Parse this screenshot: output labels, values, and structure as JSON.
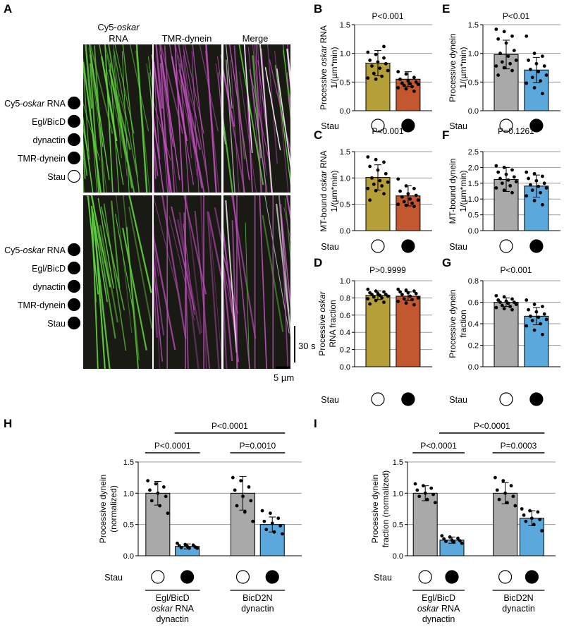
{
  "figure": {
    "panel_letters": [
      "A",
      "B",
      "C",
      "D",
      "E",
      "F",
      "G",
      "H",
      "I"
    ],
    "kymo": {
      "col1_line1": "Cy5-",
      "col1_line1_it": "oskar",
      "col1_line2": "RNA",
      "col2": "TMR-dynein",
      "col3": "Merge",
      "cond_rows": [
        {
          "label_pre": "Cy5-",
          "label_it": "oskar",
          "label_post": " RNA"
        },
        {
          "label_pre": "Egl/BicD",
          "label_it": "",
          "label_post": ""
        },
        {
          "label_pre": "dynactin",
          "label_it": "",
          "label_post": ""
        },
        {
          "label_pre": "TMR-dynein",
          "label_it": "",
          "label_post": ""
        },
        {
          "label_pre": "Stau",
          "label_it": "",
          "label_post": ""
        }
      ],
      "top_stau_filled": false,
      "bottom_stau_filled": true,
      "scale_time": "30 s",
      "scale_dist": "5 µm"
    },
    "stau_label": "Stau",
    "h_group1": [
      "Egl/BicD",
      "oskar RNA",
      "dynactin"
    ],
    "h_group2": [
      "BicD2N",
      "dynactin"
    ],
    "colors": {
      "olive": "#b59f38",
      "rust": "#c3572f",
      "grey": "#a9a9a9",
      "blue": "#5ba8dd",
      "green": "#5fd23c",
      "magenta": "#c24fc0"
    }
  },
  "chart_data": [
    {
      "panel": "B",
      "type": "bar",
      "title": "P<0.001",
      "ylabel": [
        "Processive oskar RNA",
        "1/(µm*min)"
      ],
      "ylim": [
        0,
        1.5
      ],
      "yticks": [
        0.0,
        0.5,
        1.0,
        1.5
      ],
      "categories": [
        "Stau -",
        "Stau +"
      ],
      "values": [
        0.83,
        0.55
      ],
      "errors": [
        0.22,
        0.13
      ],
      "points": [
        [
          1.02,
          0.98,
          0.92,
          0.88,
          0.85,
          0.82,
          0.78,
          0.74,
          0.7,
          0.65,
          0.6,
          0.57,
          0.55,
          1.12
        ],
        [
          0.68,
          0.64,
          0.58,
          0.55,
          0.52,
          0.5,
          0.48,
          0.47,
          0.46,
          0.44,
          0.42,
          0.4,
          0.38,
          0.34
        ]
      ]
    },
    {
      "panel": "C",
      "type": "bar",
      "title": "P<0.001",
      "ylabel": [
        "MT-bound oskar RNA",
        "1/(µm*min)"
      ],
      "ylim": [
        0,
        1.5
      ],
      "yticks": [
        0.0,
        0.5,
        1.0,
        1.5
      ],
      "categories": [
        "Stau -",
        "Stau +"
      ],
      "values": [
        1.01,
        0.66
      ],
      "errors": [
        0.24,
        0.19
      ],
      "points": [
        [
          1.4,
          1.35,
          1.3,
          1.22,
          1.15,
          1.08,
          1.0,
          0.95,
          0.92,
          0.88,
          0.85,
          0.8,
          0.76,
          0.7,
          0.58
        ],
        [
          0.98,
          0.85,
          0.8,
          0.75,
          0.7,
          0.67,
          0.64,
          0.6,
          0.58,
          0.55,
          0.52,
          0.5,
          0.48,
          0.46
        ]
      ]
    },
    {
      "panel": "D",
      "type": "bar",
      "title": "P>0.9999",
      "ylabel": [
        "Processive oskar",
        "RNA fraction"
      ],
      "ylim": [
        0,
        1.0
      ],
      "yticks": [
        0.0,
        0.2,
        0.4,
        0.6,
        0.8,
        1.0
      ],
      "categories": [
        "Stau -",
        "Stau +"
      ],
      "values": [
        0.83,
        0.82
      ],
      "errors": [
        0.05,
        0.05
      ],
      "points": [
        [
          0.9,
          0.88,
          0.87,
          0.86,
          0.85,
          0.84,
          0.84,
          0.83,
          0.82,
          0.81,
          0.8,
          0.79,
          0.77,
          0.75,
          0.73
        ],
        [
          0.9,
          0.89,
          0.88,
          0.87,
          0.86,
          0.85,
          0.84,
          0.82,
          0.8,
          0.79,
          0.78,
          0.76,
          0.74,
          0.72
        ]
      ]
    },
    {
      "panel": "E",
      "type": "bar",
      "title": "P<0.01",
      "ylabel": [
        "Processive dynein",
        "1/(µm*min)"
      ],
      "ylim": [
        0,
        1.5
      ],
      "yticks": [
        0.0,
        0.5,
        1.0,
        1.5
      ],
      "categories": [
        "Stau -",
        "Stau +"
      ],
      "values": [
        0.98,
        0.71
      ],
      "errors": [
        0.25,
        0.22
      ],
      "points": [
        [
          1.42,
          1.38,
          1.3,
          1.25,
          1.18,
          1.05,
          1.0,
          0.95,
          0.88,
          0.85,
          0.82,
          0.78,
          0.75,
          0.7,
          0.62
        ],
        [
          1.3,
          1.0,
          0.95,
          0.88,
          0.82,
          0.78,
          0.72,
          0.68,
          0.62,
          0.58,
          0.52,
          0.48,
          0.4,
          0.3
        ]
      ]
    },
    {
      "panel": "F",
      "type": "bar",
      "title": "P=0.1261",
      "ylabel": [
        "MT-bound dynein",
        "1/(µm*min)"
      ],
      "ylim": [
        0,
        2.5
      ],
      "yticks": [
        0.0,
        0.5,
        1.0,
        1.5,
        2.0,
        2.5
      ],
      "categories": [
        "Stau -",
        "Stau +"
      ],
      "values": [
        1.62,
        1.41
      ],
      "errors": [
        0.38,
        0.35
      ],
      "points": [
        [
          2.05,
          2.0,
          1.92,
          1.85,
          1.78,
          1.7,
          1.65,
          1.6,
          1.55,
          1.5,
          1.42,
          1.35,
          1.28,
          1.2
        ],
        [
          1.85,
          1.8,
          1.72,
          1.65,
          1.58,
          1.5,
          1.45,
          1.4,
          1.35,
          1.28,
          1.2,
          1.1,
          0.95,
          0.82
        ]
      ]
    },
    {
      "panel": "G",
      "type": "bar",
      "title": "P<0.001",
      "ylabel": [
        "Processive dynein",
        "fraction"
      ],
      "ylim": [
        0,
        0.8
      ],
      "yticks": [
        0.0,
        0.2,
        0.4,
        0.6,
        0.8
      ],
      "categories": [
        "Stau -",
        "Stau +"
      ],
      "values": [
        0.6,
        0.47
      ],
      "errors": [
        0.04,
        0.08
      ],
      "points": [
        [
          0.66,
          0.65,
          0.63,
          0.62,
          0.61,
          0.6,
          0.6,
          0.59,
          0.58,
          0.57,
          0.56,
          0.55,
          0.54,
          0.53
        ],
        [
          0.62,
          0.58,
          0.56,
          0.53,
          0.51,
          0.49,
          0.47,
          0.46,
          0.44,
          0.43,
          0.4,
          0.38,
          0.34,
          0.3
        ]
      ]
    },
    {
      "panel": "H",
      "type": "bar",
      "ylabel": [
        "Processive dynein",
        "(normalized)"
      ],
      "ylim": [
        0,
        1.5
      ],
      "yticks": [
        0.0,
        0.5,
        1.0,
        1.5
      ],
      "categories": [
        "Egl/BicD oskar RNA dynactin Stau -",
        "Egl/BicD oskar RNA dynactin Stau +",
        "BicD2N dynactin Stau -",
        "BicD2N dynactin Stau +"
      ],
      "values": [
        1.0,
        0.15,
        1.0,
        0.5
      ],
      "errors": [
        0.19,
        0.04,
        0.27,
        0.12
      ],
      "points": [
        [
          1.2,
          1.15,
          1.1,
          1.05,
          1.0,
          0.95,
          0.88,
          0.8,
          0.68
        ],
        [
          0.2,
          0.18,
          0.17,
          0.16,
          0.15,
          0.14,
          0.13,
          0.12,
          0.12
        ],
        [
          1.25,
          1.2,
          1.1,
          1.05,
          0.95,
          0.88,
          0.8,
          0.7,
          0.55
        ],
        [
          0.72,
          0.68,
          0.6,
          0.55,
          0.52,
          0.48,
          0.42,
          0.38,
          0.35
        ]
      ],
      "comparisons": [
        {
          "label": "P<0.0001",
          "from": 0,
          "to": 1,
          "level": 1
        },
        {
          "label": "P=0.0010",
          "from": 2,
          "to": 3,
          "level": 1
        },
        {
          "label": "P<0.0001",
          "from": 1,
          "to": 3,
          "level": 2
        }
      ]
    },
    {
      "panel": "I",
      "type": "bar",
      "ylabel": [
        "Processive dynein",
        "fraction (normalized)"
      ],
      "ylim": [
        0,
        1.5
      ],
      "yticks": [
        0.0,
        0.5,
        1.0,
        1.5
      ],
      "categories": [
        "Egl/BicD oskar RNA dynactin Stau -",
        "Egl/BicD oskar RNA dynactin Stau +",
        "BicD2N dynactin Stau -",
        "BicD2N dynactin Stau +"
      ],
      "values": [
        1.0,
        0.25,
        1.0,
        0.6
      ],
      "errors": [
        0.12,
        0.05,
        0.17,
        0.12
      ],
      "points": [
        [
          1.15,
          1.12,
          1.08,
          1.05,
          1.0,
          0.98,
          0.95,
          0.9,
          0.85
        ],
        [
          0.32,
          0.3,
          0.28,
          0.27,
          0.25,
          0.24,
          0.23,
          0.22,
          0.2
        ],
        [
          1.25,
          1.2,
          1.12,
          1.05,
          1.0,
          0.95,
          0.9,
          0.85,
          0.8
        ],
        [
          0.75,
          0.72,
          0.7,
          0.65,
          0.6,
          0.58,
          0.55,
          0.5,
          0.4
        ]
      ],
      "comparisons": [
        {
          "label": "P<0.0001",
          "from": 0,
          "to": 1,
          "level": 1
        },
        {
          "label": "P=0.0003",
          "from": 2,
          "to": 3,
          "level": 1
        },
        {
          "label": "P<0.0001",
          "from": 1,
          "to": 3,
          "level": 2
        }
      ]
    }
  ]
}
